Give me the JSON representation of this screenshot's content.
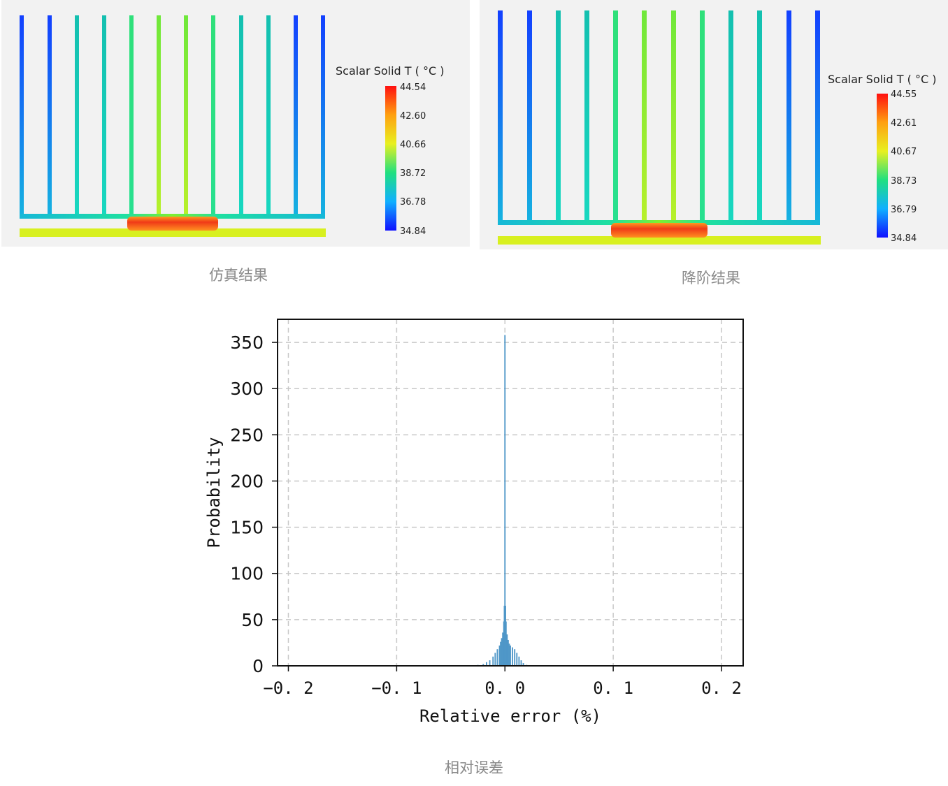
{
  "panels": [
    {
      "caption": "仿真结果",
      "legend": {
        "title": "Scalar Solid T ( °C )",
        "ticks": [
          "44.54",
          "42.60",
          "40.66",
          "38.72",
          "36.78",
          "34.84"
        ]
      }
    },
    {
      "caption": "降阶结果",
      "legend": {
        "title": "Scalar Solid T ( °C )",
        "ticks": [
          "44.55",
          "42.61",
          "40.67",
          "38.73",
          "36.79",
          "34.84"
        ]
      }
    }
  ],
  "colors": {
    "fin_outer": "#1b4bff",
    "fin_mid": "#10e6a0",
    "fin_center": "#5ee84a",
    "base": "#1ad6c2",
    "plate": "#d6f21a",
    "heat_source": "#f04020",
    "histogram": "#4f97c8"
  },
  "chart_data": {
    "type": "bar",
    "title": "",
    "xlabel": "Relative error (%)",
    "ylabel": "Probability",
    "xlim": [
      -0.21,
      0.22
    ],
    "ylim": [
      0,
      375
    ],
    "xticks": [
      -0.2,
      -0.1,
      0.0,
      0.1,
      0.2
    ],
    "xtick_labels": [
      "−0. 2",
      "−0. 1",
      "0. 0",
      "0. 1",
      "0. 2"
    ],
    "yticks": [
      0,
      50,
      100,
      150,
      200,
      250,
      300,
      350
    ],
    "ytick_labels": [
      "0",
      "50",
      "100",
      "150",
      "200",
      "250",
      "300",
      "350"
    ],
    "grid": true,
    "bin_centers": [
      -0.03,
      -0.025,
      -0.02,
      -0.017,
      -0.014,
      -0.011,
      -0.009,
      -0.007,
      -0.005,
      -0.004,
      -0.003,
      -0.002,
      -0.001,
      -0.0005,
      0.0,
      0.0005,
      0.001,
      0.002,
      0.003,
      0.004,
      0.005,
      0.007,
      0.009,
      0.011,
      0.013,
      0.015,
      0.017,
      0.02,
      0.025
    ],
    "values": [
      0.5,
      1,
      2,
      4,
      6,
      10,
      14,
      18,
      22,
      26,
      30,
      36,
      48,
      65,
      358,
      65,
      48,
      34,
      28,
      24,
      22,
      20,
      18,
      14,
      10,
      6,
      3,
      1,
      0.5
    ],
    "bin_width": 0.0012
  },
  "bottom_caption": "相对误差"
}
